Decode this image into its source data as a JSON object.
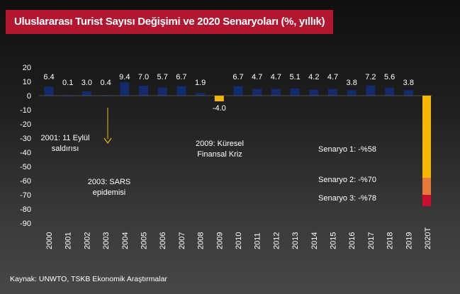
{
  "title": "Uluslararası Turist Sayısı Değişimi ve 2020 Senaryoları (%, yıllık)",
  "source": "Kaynak: UNWTO, TSKB Ekonomik Araştırmalar",
  "colors": {
    "background": "#222222",
    "title_bar": "#b3162f",
    "bar_positive": "#132a6b",
    "bar_negative": "#f5b800",
    "scenario_1": "#f5b800",
    "scenario_2": "#e8793a",
    "scenario_3": "#c8102e",
    "text": "#ffffff"
  },
  "chart_data": {
    "type": "bar",
    "categories": [
      "2000",
      "2001",
      "2002",
      "2003",
      "2004",
      "2005",
      "2006",
      "2007",
      "2008",
      "2009",
      "2010",
      "2011",
      "2012",
      "2013",
      "2014",
      "2015",
      "2016",
      "2017",
      "2018",
      "2019"
    ],
    "values": [
      6.4,
      0.1,
      3.0,
      0.4,
      9.4,
      7.0,
      5.7,
      6.7,
      1.9,
      -4.0,
      6.7,
      4.7,
      4.7,
      5.1,
      4.2,
      4.7,
      3.8,
      7.2,
      5.6,
      3.8
    ],
    "value_labels": [
      "6.4",
      "0.1",
      "3.0",
      "0.4",
      "9.4",
      "7.0",
      "5.7",
      "6.7",
      "1.9",
      "-4.0",
      "6.7",
      "4.7",
      "4.7",
      "5.1",
      "4.2",
      "4.7",
      "3.8",
      "7.2",
      "5.6",
      "3.8"
    ],
    "scenario": {
      "category": "2020T",
      "stack": [
        {
          "name": "Senaryo 1",
          "value": -58,
          "label": "Senaryo 1: -%58"
        },
        {
          "name": "Senaryo 2",
          "value": -70,
          "label": "Senaryo 2: -%70"
        },
        {
          "name": "Senaryo 3",
          "value": -78,
          "label": "Senaryo 3: -%78"
        }
      ]
    },
    "y_ticks": [
      20,
      10,
      0,
      -10,
      -20,
      -30,
      -40,
      -50,
      -60,
      -70,
      -80,
      -90
    ],
    "ylim": [
      -90,
      20
    ],
    "annotations": [
      {
        "id": "sept11",
        "lines": [
          "2001: 11 Eylül",
          "saldırısı"
        ],
        "year": "2001"
      },
      {
        "id": "sars",
        "lines": [
          "2003: SARS",
          "epidemisi"
        ],
        "year": "2003"
      },
      {
        "id": "crisis",
        "lines": [
          "2009: Küresel",
          "Finansal Kriz"
        ],
        "year": "2009"
      }
    ],
    "title": "Uluslararası Turist Sayısı Değişimi ve 2020 Senaryoları (%, yıllık)",
    "xlabel": "",
    "ylabel": "",
    "grid": false
  }
}
